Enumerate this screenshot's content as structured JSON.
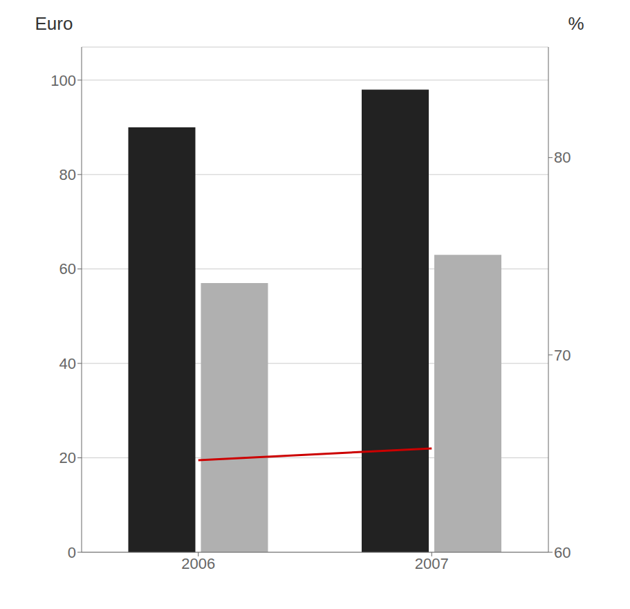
{
  "chart_data": {
    "type": "bar",
    "categories": [
      "2006",
      "2007"
    ],
    "series": [
      {
        "type": "bar",
        "color": "#222222",
        "values": [
          90,
          98
        ]
      },
      {
        "type": "bar",
        "color": "#b0b0b0",
        "values": [
          57,
          63
        ]
      },
      {
        "type": "line",
        "color": "#cc0000",
        "values": [
          19.5,
          22
        ]
      }
    ],
    "ylabel": "Euro",
    "y2label": "%",
    "ylim": [
      0,
      107
    ],
    "yticks": [
      0,
      20,
      40,
      60,
      80,
      100
    ],
    "y2lim": [
      60,
      85.6
    ],
    "y2ticks": [
      60,
      70,
      80
    ],
    "grid": true
  }
}
